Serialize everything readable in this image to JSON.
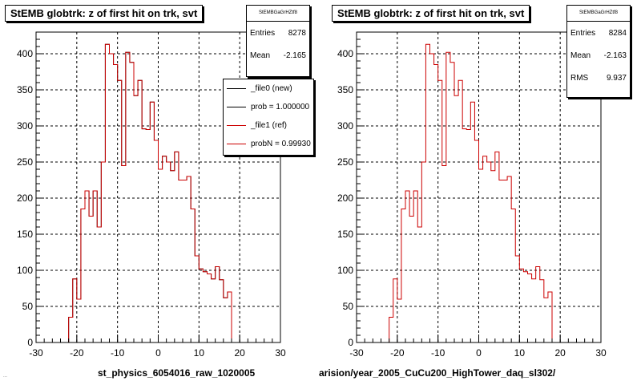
{
  "colors": {
    "new": "#000000",
    "ref": "#cc0000",
    "grid": "#000000",
    "frame": "#000000"
  },
  "footer": {
    "left_tiny": "...",
    "left_name": "st_physics_6054016_raw_1020005",
    "right_path": "arision/year_2005_CuCu200_HighTower_daq_sl302/"
  },
  "legend": [
    {
      "label": "_file0 (new)",
      "color": "#000000"
    },
    {
      "label": "prob = 1.000000",
      "color": "#000000"
    },
    {
      "label": "_file1 (ref)",
      "color": "#cc0000"
    },
    {
      "label": "probN = 0.99930",
      "color": "#cc0000"
    }
  ],
  "stats": [
    {
      "header": "StEMBGaGrHZtf8",
      "rows": [
        {
          "label": "Entries",
          "value": "8278"
        },
        {
          "label": "Mean",
          "value": "-2.165"
        }
      ]
    },
    {
      "header": "StEMBGaGrHZtf8",
      "rows": [
        {
          "label": "Entries",
          "value": "8284"
        },
        {
          "label": "Mean",
          "value": "-2.163"
        },
        {
          "label": "RMS",
          "value": "9.937"
        }
      ]
    }
  ],
  "chart_data": [
    {
      "type": "histogram",
      "title": "StEMB globtrk: z of first hit on trk, svt",
      "xlabel": "",
      "ylabel": "",
      "xlim": [
        -30,
        30
      ],
      "ylim": [
        0,
        430
      ],
      "xticks": [
        "-30",
        "-20",
        "-10",
        "0",
        "10",
        "20",
        "30"
      ],
      "yticks": [
        "0",
        "50",
        "100",
        "150",
        "200",
        "250",
        "300",
        "350",
        "400"
      ],
      "grid": true,
      "legend_position": "top-right",
      "bin_edges": [
        -30,
        -29,
        -28,
        -27,
        -26,
        -25,
        -24,
        -23,
        -22,
        -21,
        -20,
        -19,
        -18,
        -17,
        -16,
        -15,
        -14,
        -13,
        -12,
        -11,
        -10,
        -9,
        -8,
        -7,
        -6,
        -5,
        -4,
        -3,
        -2,
        -1,
        0,
        1,
        2,
        3,
        4,
        5,
        6,
        7,
        8,
        9,
        10,
        11,
        12,
        13,
        14,
        15,
        16,
        17,
        18,
        19,
        20,
        21,
        22,
        23,
        24,
        25,
        26,
        27,
        28,
        29,
        30
      ],
      "series": [
        {
          "name": "_file0 (new)",
          "color": "#000000",
          "values": [
            0,
            0,
            0,
            0,
            0,
            0,
            0,
            0,
            35,
            88,
            60,
            185,
            210,
            175,
            210,
            160,
            250,
            413,
            400,
            385,
            363,
            245,
            402,
            388,
            342,
            363,
            296,
            295,
            333,
            280,
            240,
            258,
            250,
            238,
            264,
            225,
            225,
            230,
            185,
            120,
            102,
            98,
            95,
            88,
            105,
            87,
            62,
            70,
            0,
            0,
            0,
            0,
            0,
            0,
            0,
            0,
            0,
            0,
            0,
            0
          ]
        },
        {
          "name": "_file1 (ref)",
          "color": "#cc0000",
          "values": [
            0,
            0,
            0,
            0,
            0,
            0,
            0,
            0,
            35,
            88,
            60,
            185,
            210,
            175,
            210,
            160,
            250,
            413,
            400,
            385,
            363,
            245,
            402,
            388,
            342,
            363,
            296,
            295,
            333,
            280,
            240,
            258,
            250,
            238,
            264,
            225,
            225,
            230,
            185,
            120,
            102,
            98,
            95,
            88,
            105,
            87,
            62,
            70,
            0,
            0,
            0,
            0,
            0,
            0,
            0,
            0,
            0,
            0,
            0,
            0
          ]
        }
      ]
    },
    {
      "type": "histogram",
      "title": "StEMB globtrk: z of first hit on trk, svt",
      "xlabel": "",
      "ylabel": "",
      "xlim": [
        -30,
        30
      ],
      "ylim": [
        0,
        430
      ],
      "xticks": [
        "-30",
        "-20",
        "-10",
        "0",
        "10",
        "20",
        "30"
      ],
      "yticks": [
        "0",
        "50",
        "100",
        "150",
        "200",
        "250",
        "300",
        "350",
        "400"
      ],
      "grid": true,
      "bin_edges": [
        -30,
        -29,
        -28,
        -27,
        -26,
        -25,
        -24,
        -23,
        -22,
        -21,
        -20,
        -19,
        -18,
        -17,
        -16,
        -15,
        -14,
        -13,
        -12,
        -11,
        -10,
        -9,
        -8,
        -7,
        -6,
        -5,
        -4,
        -3,
        -2,
        -1,
        0,
        1,
        2,
        3,
        4,
        5,
        6,
        7,
        8,
        9,
        10,
        11,
        12,
        13,
        14,
        15,
        16,
        17,
        18,
        19,
        20,
        21,
        22,
        23,
        24,
        25,
        26,
        27,
        28,
        29,
        30
      ],
      "series": [
        {
          "name": "_file1 (ref)",
          "color": "#cc0000",
          "values": [
            0,
            0,
            0,
            0,
            0,
            0,
            0,
            0,
            35,
            88,
            60,
            185,
            210,
            175,
            210,
            160,
            250,
            413,
            400,
            385,
            363,
            245,
            402,
            388,
            342,
            363,
            296,
            295,
            333,
            280,
            240,
            258,
            250,
            238,
            264,
            225,
            225,
            230,
            185,
            120,
            102,
            98,
            95,
            88,
            105,
            87,
            62,
            70,
            0,
            0,
            0,
            0,
            0,
            0,
            0,
            0,
            0,
            0,
            0,
            0
          ]
        }
      ]
    }
  ]
}
